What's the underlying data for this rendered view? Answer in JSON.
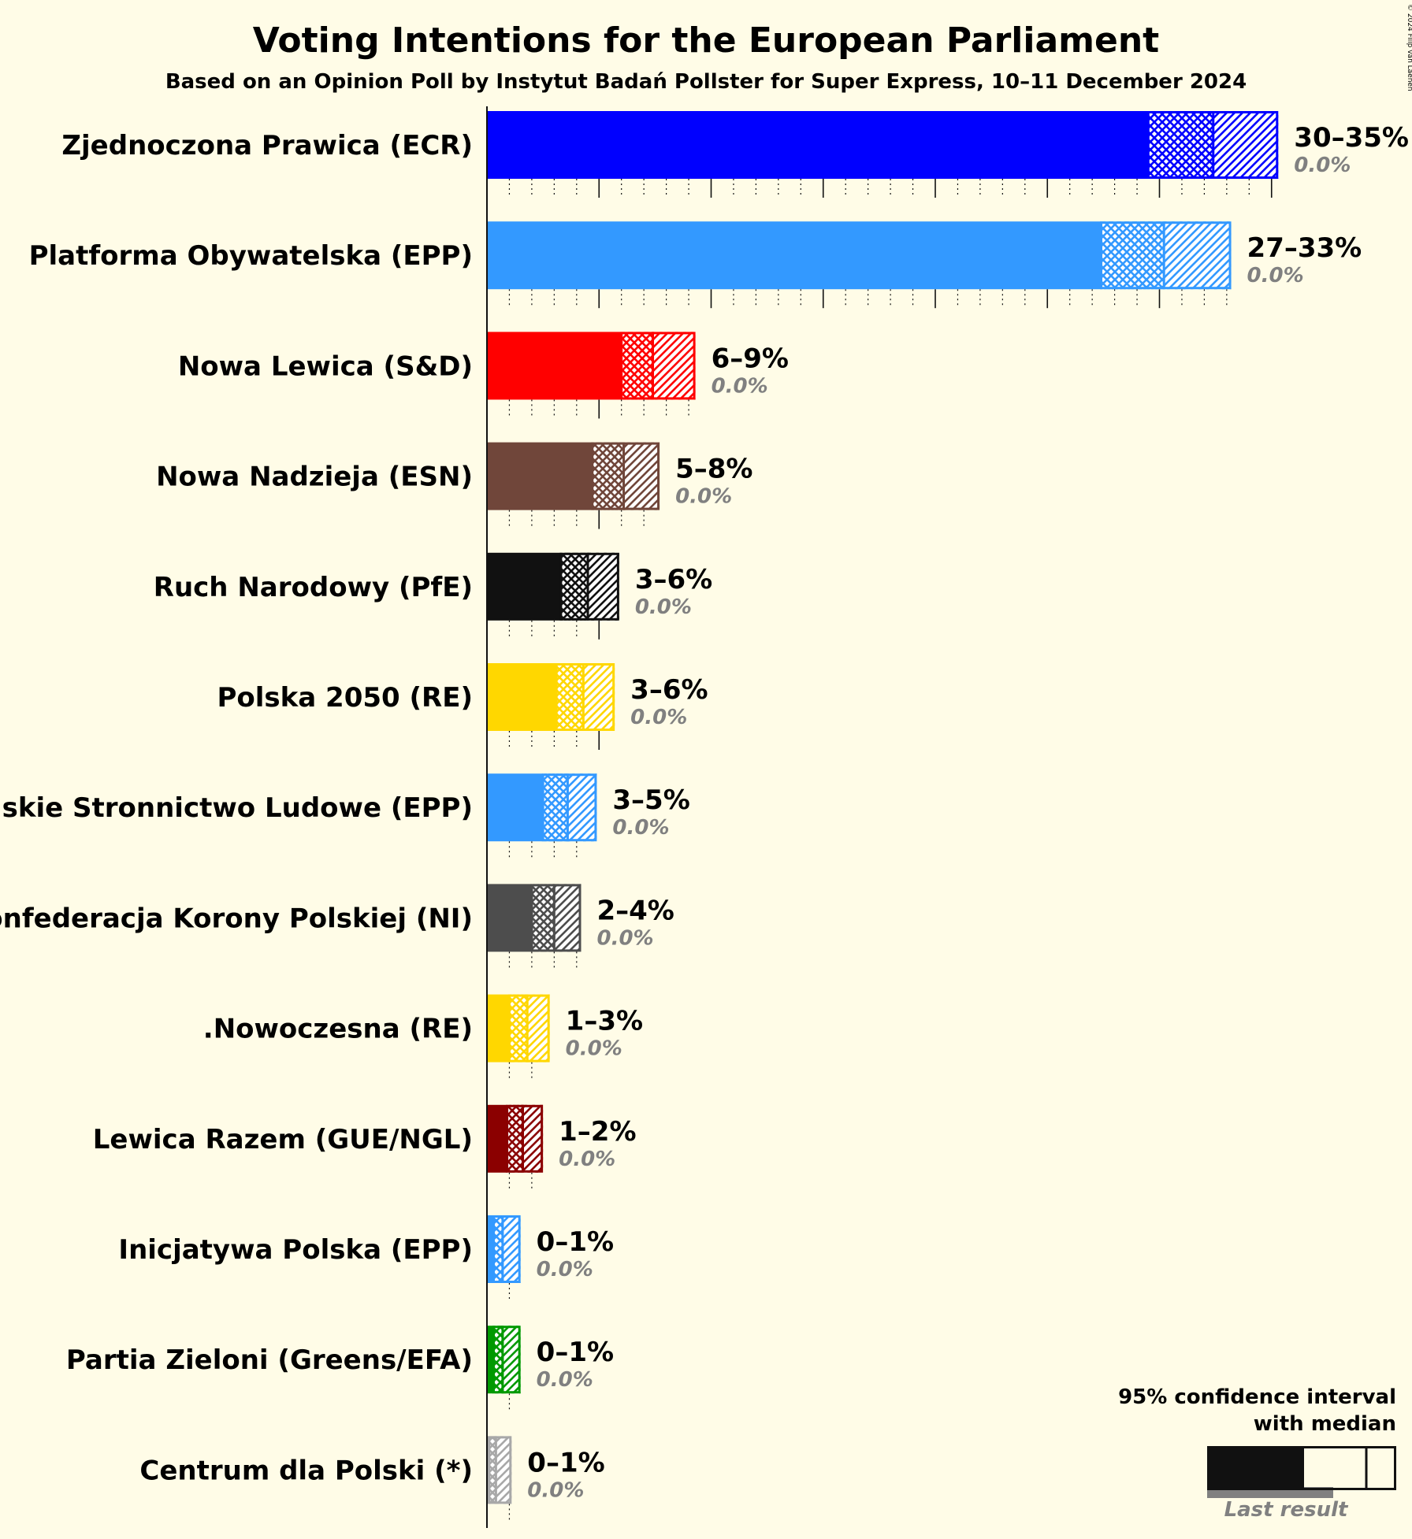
{
  "title": "Voting Intentions for the European Parliament",
  "subtitle": "Based on an Opinion Poll by Instytut Badań Pollster for Super Express, 10–11 December 2024",
  "copyright": "© 2024 Filip van Laenen",
  "legend": {
    "line1": "95% confidence interval",
    "line2": "with median",
    "last_result": "Last result",
    "color": "#111111"
  },
  "chart_data": {
    "type": "bar",
    "orientation": "horizontal",
    "x_unit": "%",
    "xlim": [
      0,
      35
    ],
    "series": [
      {
        "party": "Zjednoczona Prawica (ECR)",
        "color": "#0000FF",
        "low": 29.5,
        "median": 32.4,
        "high": 35.3,
        "range_label": "30–35%",
        "last_result": 0.0,
        "last_label": "0.0%"
      },
      {
        "party": "Platforma Obywatelska (EPP)",
        "color": "#3399FF",
        "low": 27.4,
        "median": 30.2,
        "high": 33.2,
        "range_label": "27–33%",
        "last_result": 0.0,
        "last_label": "0.0%"
      },
      {
        "party": "Nowa Lewica (S&D)",
        "color": "#FF0000",
        "low": 6.0,
        "median": 7.4,
        "high": 9.3,
        "range_label": "6–9%",
        "last_result": 0.0,
        "last_label": "0.0%"
      },
      {
        "party": "Nowa Nadzieja (ESN)",
        "color": "#70463A",
        "low": 4.7,
        "median": 6.1,
        "high": 7.7,
        "range_label": "5–8%",
        "last_result": 0.0,
        "last_label": "0.0%"
      },
      {
        "party": "Ruch Narodowy (PfE)",
        "color": "#111111",
        "low": 3.3,
        "median": 4.5,
        "high": 5.9,
        "range_label": "3–6%",
        "last_result": 0.0,
        "last_label": "0.0%"
      },
      {
        "party": "Polska 2050 (RE)",
        "color": "#FFD700",
        "low": 3.1,
        "median": 4.3,
        "high": 5.7,
        "range_label": "3–6%",
        "last_result": 0.0,
        "last_label": "0.0%"
      },
      {
        "party": "Polskie Stronnictwo Ludowe (EPP)",
        "color": "#3399FF",
        "low": 2.5,
        "median": 3.6,
        "high": 4.9,
        "range_label": "3–5%",
        "last_result": 0.0,
        "last_label": "0.0%"
      },
      {
        "party": "Konfederacja Korony Polskiej (NI)",
        "color": "#4D4D4D",
        "low": 2.0,
        "median": 3.0,
        "high": 4.2,
        "range_label": "2–4%",
        "last_result": 0.0,
        "last_label": "0.0%"
      },
      {
        "party": ".Nowoczesna (RE)",
        "color": "#FFD700",
        "low": 1.0,
        "median": 1.8,
        "high": 2.8,
        "range_label": "1–3%",
        "last_result": 0.0,
        "last_label": "0.0%"
      },
      {
        "party": "Lewica Razem (GUE/NGL)",
        "color": "#8B0000",
        "low": 0.9,
        "median": 1.6,
        "high": 2.5,
        "range_label": "1–2%",
        "last_result": 0.0,
        "last_label": "0.0%"
      },
      {
        "party": "Inicjatywa Polska (EPP)",
        "color": "#3399FF",
        "low": 0.3,
        "median": 0.7,
        "high": 1.5,
        "range_label": "0–1%",
        "last_result": 0.0,
        "last_label": "0.0%"
      },
      {
        "party": "Partia Zieloni (Greens/EFA)",
        "color": "#009900",
        "low": 0.3,
        "median": 0.7,
        "high": 1.5,
        "range_label": "0–1%",
        "last_result": 0.0,
        "last_label": "0.0%"
      },
      {
        "party": "Centrum dla Polski (*)",
        "color": "#A8A8A8",
        "low": 0.1,
        "median": 0.4,
        "high": 1.1,
        "range_label": "0–1%",
        "last_result": 0.0,
        "last_label": "0.0%"
      }
    ]
  }
}
